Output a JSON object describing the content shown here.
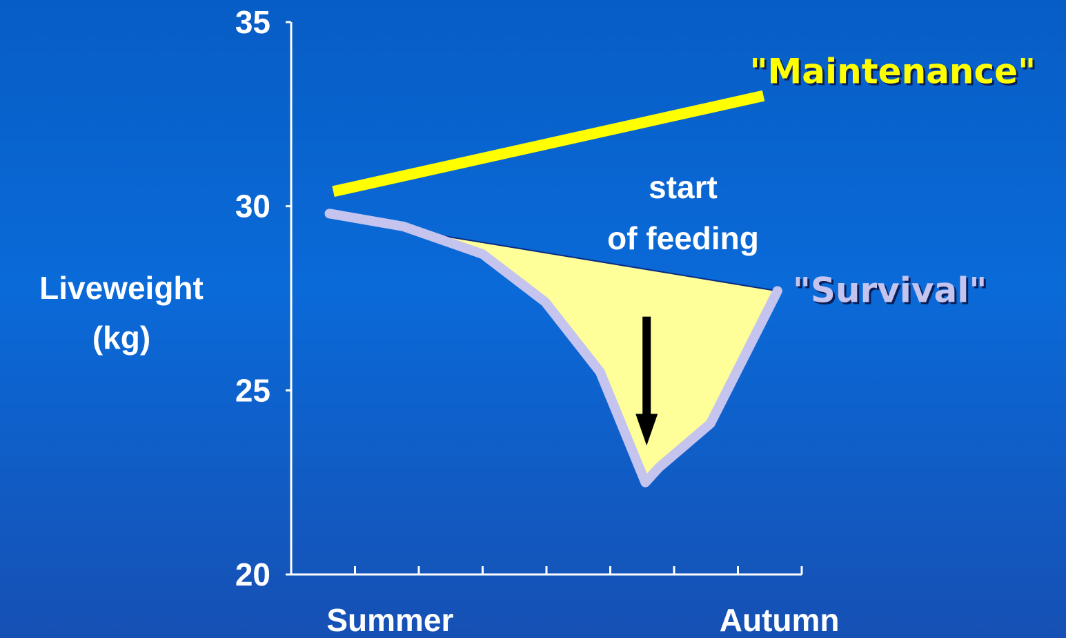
{
  "chart_data": {
    "type": "line",
    "ylabel": [
      "Liveweight",
      "(kg)"
    ],
    "ylim": [
      20,
      35
    ],
    "yticks": [
      20,
      25,
      30,
      35
    ],
    "xlim": [
      0,
      8
    ],
    "xticks": [
      1,
      2,
      3,
      4,
      5,
      6,
      7,
      8
    ],
    "xlabels": [
      {
        "value": 1.55,
        "label": "Summer"
      },
      {
        "value": 7.65,
        "label": "Autumn"
      }
    ],
    "series": [
      {
        "name": "\"Maintenance\"",
        "color": "#ffff00",
        "x": [
          0.66,
          7.4
        ],
        "values": [
          30.4,
          33.0
        ]
      },
      {
        "name": "\"Survival\"",
        "color": "#c4c4ef",
        "x": [
          0.6,
          1.76,
          3.0,
          3.98,
          4.84,
          5.55,
          5.76,
          6.57,
          7.62
        ],
        "values": [
          29.8,
          29.45,
          28.7,
          27.4,
          25.5,
          22.5,
          22.9,
          24.1,
          27.7
        ]
      }
    ],
    "fill": {
      "color": "#ffff99",
      "x": [
        2.36,
        7.62
      ],
      "values": [
        29.2,
        27.7
      ]
    },
    "annotation": {
      "text": [
        "start",
        "of feeding"
      ],
      "arrow": {
        "x": 5.57,
        "values": [
          27.0,
          23.5
        ]
      }
    }
  }
}
